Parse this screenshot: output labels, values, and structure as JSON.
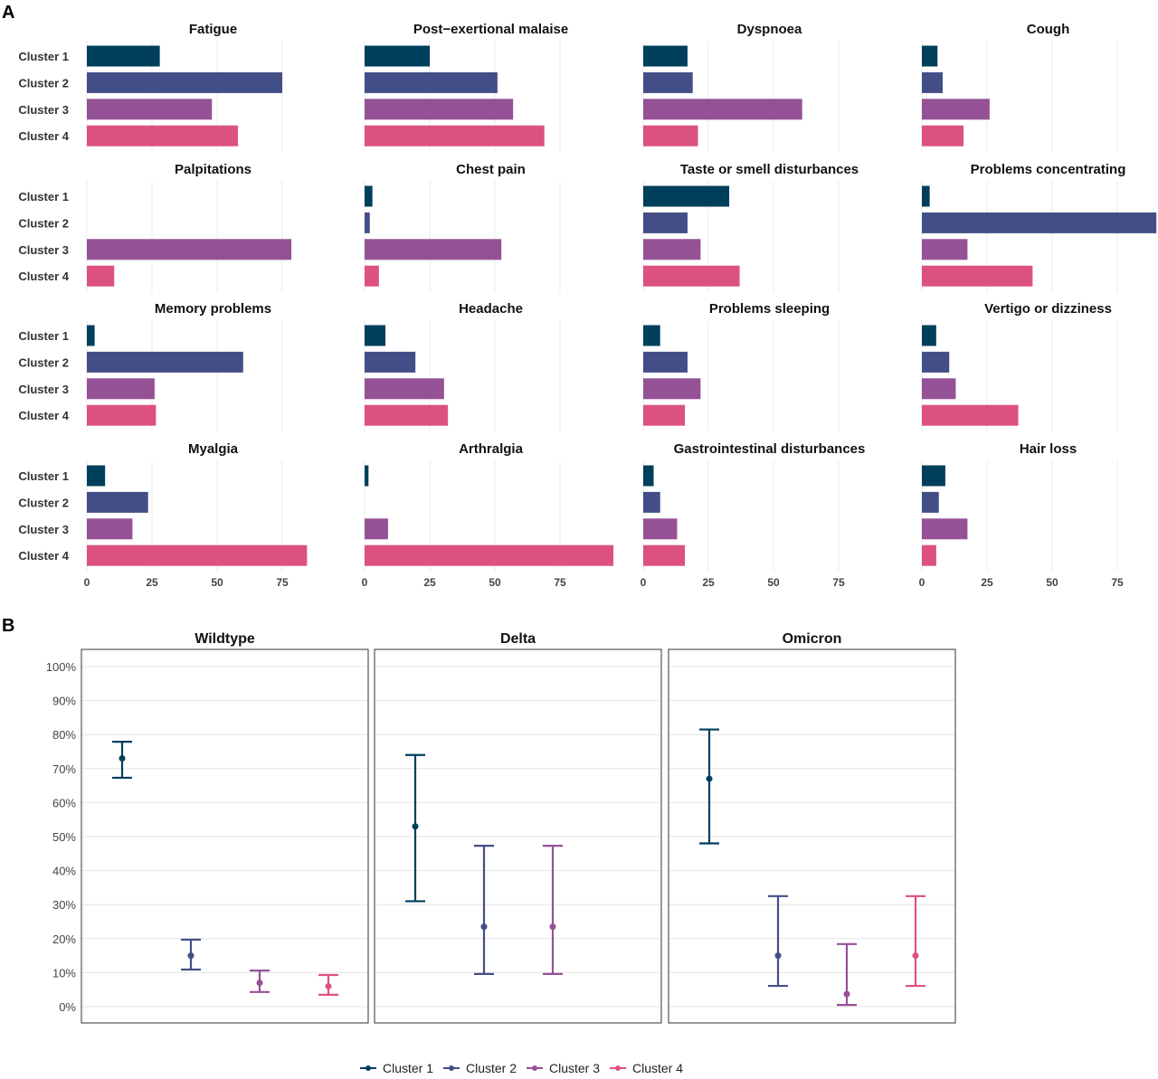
{
  "colors": {
    "Cluster 1": "#003f5c",
    "Cluster 2": "#444e86",
    "Cluster 3": "#955196",
    "Cluster 4": "#dd5182"
  },
  "chart_data": [
    {
      "panel_label": "A",
      "type": "bar",
      "orientation": "horizontal",
      "categories": [
        "Cluster 1",
        "Cluster 2",
        "Cluster 3",
        "Cluster 4"
      ],
      "xlim": [
        0,
        95.5
      ],
      "xticks": [
        0,
        25,
        50,
        75
      ],
      "grid": "vertical",
      "facets": [
        {
          "title": "Fatigue",
          "values": [
            28,
            75,
            48,
            58
          ]
        },
        {
          "title": "Post−exertional malaise",
          "values": [
            25,
            51,
            57,
            69
          ]
        },
        {
          "title": "Dyspnoea",
          "values": [
            17,
            19,
            61,
            21
          ]
        },
        {
          "title": "Cough",
          "values": [
            6,
            8,
            26,
            16
          ]
        },
        {
          "title": "Palpitations",
          "values": [
            0,
            0,
            78.5,
            10.5
          ]
        },
        {
          "title": "Chest pain",
          "values": [
            3,
            2,
            52.5,
            5.5
          ]
        },
        {
          "title": "Taste or smell disturbances",
          "values": [
            33,
            17,
            22,
            37
          ]
        },
        {
          "title": "Problems concentrating",
          "values": [
            3,
            90,
            17.5,
            42.5
          ]
        },
        {
          "title": "Memory problems",
          "values": [
            3,
            60,
            26,
            26.5
          ]
        },
        {
          "title": "Headache",
          "values": [
            8,
            19.5,
            30.5,
            32
          ]
        },
        {
          "title": "Problems sleeping",
          "values": [
            6.5,
            17,
            22,
            16
          ]
        },
        {
          "title": "Vertigo or dizziness",
          "values": [
            5.5,
            10.5,
            13,
            37
          ]
        },
        {
          "title": "Myalgia",
          "values": [
            7,
            23.5,
            17.5,
            84.5
          ]
        },
        {
          "title": "Arthralgia",
          "values": [
            1.5,
            0,
            9,
            95.5
          ]
        },
        {
          "title": "Gastrointestinal disturbances",
          "values": [
            4,
            6.5,
            13,
            16
          ]
        },
        {
          "title": "Hair loss",
          "values": [
            9,
            6.5,
            17.5,
            5.5
          ]
        }
      ]
    },
    {
      "panel_label": "B",
      "type": "scatter",
      "subtype": "point-errorbar",
      "ylim": [
        0,
        100
      ],
      "yticks": [
        "0%",
        "10%",
        "20%",
        "30%",
        "40%",
        "50%",
        "60%",
        "70%",
        "80%",
        "90%",
        "100%"
      ],
      "grid": "horizontal",
      "legend": {
        "position": "bottom",
        "entries": [
          "Cluster 1",
          "Cluster 2",
          "Cluster 3",
          "Cluster 4"
        ]
      },
      "facets": [
        {
          "title": "Wildtype",
          "points": [
            {
              "series": "Cluster 1",
              "y": 73,
              "lower": 67.3,
              "upper": 77.9
            },
            {
              "series": "Cluster 2",
              "y": 15,
              "lower": 10.9,
              "upper": 19.7
            },
            {
              "series": "Cluster 3",
              "y": 7,
              "lower": 4.3,
              "upper": 10.6
            },
            {
              "series": "Cluster 4",
              "y": 6,
              "lower": 3.5,
              "upper": 9.3
            }
          ]
        },
        {
          "title": "Delta",
          "points": [
            {
              "series": "Cluster 1",
              "y": 53,
              "lower": 31,
              "upper": 74
            },
            {
              "series": "Cluster 2",
              "y": 23.5,
              "lower": 9.6,
              "upper": 47.3
            },
            {
              "series": "Cluster 3",
              "y": 23.5,
              "lower": 9.6,
              "upper": 47.3
            }
          ]
        },
        {
          "title": "Omicron",
          "points": [
            {
              "series": "Cluster 1",
              "y": 67,
              "lower": 48,
              "upper": 81.5
            },
            {
              "series": "Cluster 2",
              "y": 15,
              "lower": 6.1,
              "upper": 32.5
            },
            {
              "series": "Cluster 3",
              "y": 3.7,
              "lower": 0.5,
              "upper": 18.4
            },
            {
              "series": "Cluster 4",
              "y": 15,
              "lower": 6.1,
              "upper": 32.5
            }
          ]
        }
      ]
    }
  ]
}
